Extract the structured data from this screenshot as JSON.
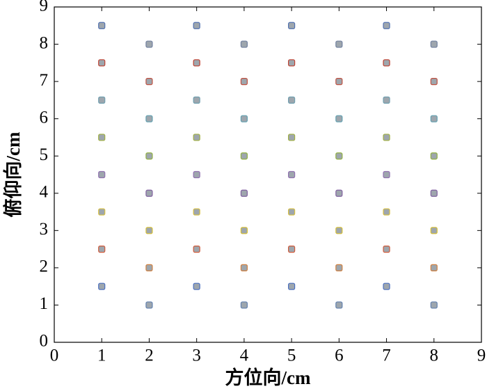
{
  "chart_data": {
    "type": "scatter",
    "xlabel": "方位向/cm",
    "ylabel": "俯仰向/cm",
    "xlim": [
      0,
      9
    ],
    "ylim": [
      0,
      9
    ],
    "xticks": [
      0,
      1,
      2,
      3,
      4,
      5,
      6,
      7,
      8,
      9
    ],
    "yticks": [
      0,
      1,
      2,
      3,
      4,
      5,
      6,
      7,
      8,
      9
    ],
    "grid": false,
    "marker_fill": "#9ea6ad",
    "x": [
      1,
      1,
      1,
      1,
      1,
      1,
      1,
      1,
      2,
      2,
      2,
      2,
      2,
      2,
      2,
      2,
      3,
      3,
      3,
      3,
      3,
      3,
      3,
      3,
      4,
      4,
      4,
      4,
      4,
      4,
      4,
      4,
      5,
      5,
      5,
      5,
      5,
      5,
      5,
      5,
      6,
      6,
      6,
      6,
      6,
      6,
      6,
      6,
      7,
      7,
      7,
      7,
      7,
      7,
      7,
      7,
      8,
      8,
      8,
      8,
      8,
      8,
      8,
      8
    ],
    "y": [
      1.5,
      2.5,
      3.5,
      4.5,
      5.5,
      6.5,
      7.5,
      8.5,
      1,
      2,
      3,
      4,
      5,
      6,
      7,
      8,
      1.5,
      2.5,
      3.5,
      4.5,
      5.5,
      6.5,
      7.5,
      8.5,
      1,
      2,
      3,
      4,
      5,
      6,
      7,
      8,
      1.5,
      2.5,
      3.5,
      4.5,
      5.5,
      6.5,
      7.5,
      8.5,
      1,
      2,
      3,
      4,
      5,
      6,
      7,
      8,
      1.5,
      2.5,
      3.5,
      4.5,
      5.5,
      6.5,
      7.5,
      8.5,
      1,
      2,
      3,
      4,
      5,
      6,
      7,
      8
    ],
    "colors": [
      "#4a6fc0",
      "#d05a3a",
      "#d8c040",
      "#9070b0",
      "#a0b040",
      "#70a0b0",
      "#c04030",
      "#5070b0",
      "#6080b0",
      "#d08040",
      "#d8c030",
      "#8060a0",
      "#90b040",
      "#60a0b0",
      "#c05040",
      "#7080a0",
      "#4a6fc0",
      "#d05a3a",
      "#d8c040",
      "#9070b0",
      "#a0b040",
      "#70a0b0",
      "#c04030",
      "#5070b0",
      "#6080b0",
      "#d08040",
      "#d8c030",
      "#8060a0",
      "#90b040",
      "#60a0b0",
      "#c05040",
      "#7080a0",
      "#4a6fc0",
      "#d05a3a",
      "#d8c040",
      "#9070b0",
      "#a0b040",
      "#70a0b0",
      "#c04030",
      "#5070b0",
      "#6080b0",
      "#d08040",
      "#d8c030",
      "#8060a0",
      "#90b040",
      "#60a0b0",
      "#c05040",
      "#7080a0",
      "#4a6fc0",
      "#d05a3a",
      "#d8c040",
      "#9070b0",
      "#a0b040",
      "#70a0b0",
      "#c04030",
      "#5070b0",
      "#6080b0",
      "#d08040",
      "#d8c030",
      "#8060a0",
      "#90b040",
      "#60a0b0",
      "#c05040",
      "#7080a0"
    ]
  }
}
